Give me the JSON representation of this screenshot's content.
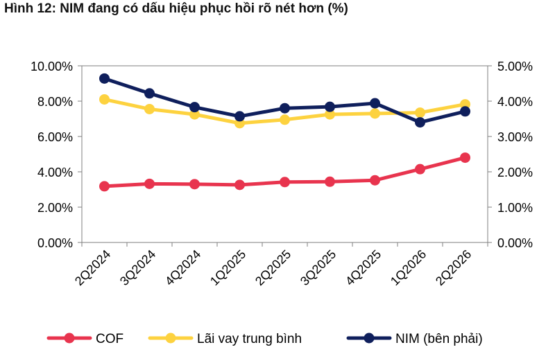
{
  "title": "Hình 12: NIM đang có dấu hiệu phục hồi rõ nét hơn (%)",
  "chart_data": {
    "type": "line",
    "title": "Hình 12: NIM đang có dấu hiệu phục hồi rõ nét hơn (%)",
    "categories": [
      "2Q2024",
      "3Q2024",
      "4Q2024",
      "1Q2025",
      "2Q2025",
      "3Q2025",
      "4Q2025",
      "1Q2026",
      "2Q2026"
    ],
    "y_left": {
      "ylim": [
        0,
        10
      ],
      "ticks": [
        "0.00%",
        "2.00%",
        "4.00%",
        "6.00%",
        "8.00%",
        "10.00%"
      ]
    },
    "y_right": {
      "ylim": [
        0,
        5
      ],
      "ticks": [
        "0.00%",
        "1.00%",
        "2.00%",
        "3.00%",
        "4.00%",
        "5.00%"
      ]
    },
    "series": [
      {
        "name": "COF",
        "axis": "left",
        "color": "#e8344e",
        "values": [
          3.18,
          3.32,
          3.3,
          3.26,
          3.42,
          3.44,
          3.52,
          4.15,
          4.8
        ]
      },
      {
        "name": "Lãi vay trung bình",
        "axis": "left",
        "color": "#fdd23f",
        "values": [
          8.1,
          7.55,
          7.25,
          6.75,
          6.95,
          7.25,
          7.3,
          7.35,
          7.82
        ]
      },
      {
        "name": "NIM (bên phải)",
        "axis": "right",
        "color": "#0f1f5c",
        "values": [
          4.64,
          4.22,
          3.83,
          3.57,
          3.8,
          3.84,
          3.94,
          3.4,
          3.71
        ]
      }
    ],
    "legend": "bottom",
    "grid": false
  }
}
